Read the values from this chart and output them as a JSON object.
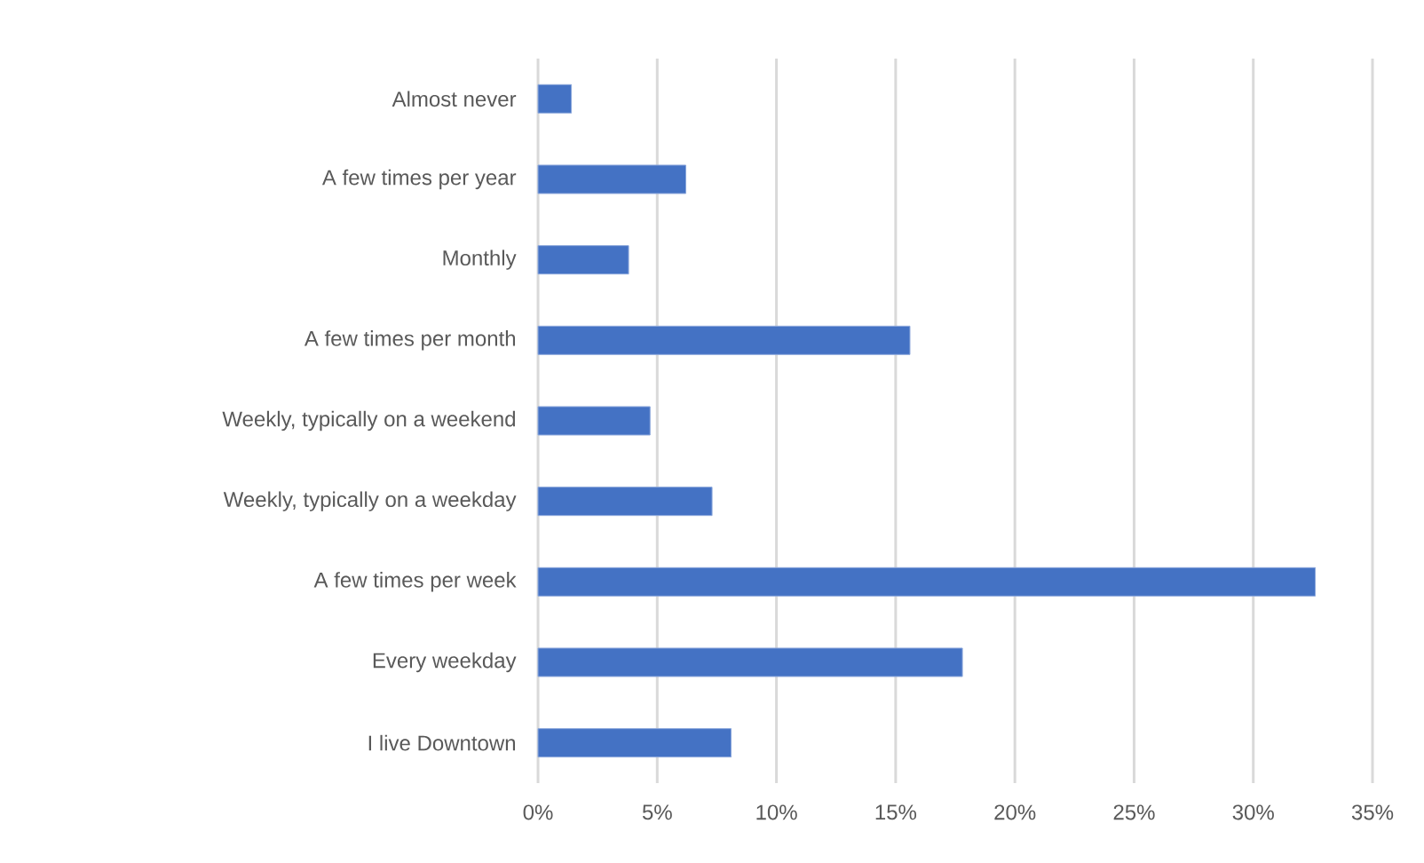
{
  "chart_data": {
    "type": "bar",
    "orientation": "horizontal",
    "categories": [
      "Almost never",
      "A few times per year",
      "Monthly",
      "A few times per month",
      "Weekly, typically on a weekend",
      "Weekly, typically on a weekday",
      "A few times per week",
      "Every weekday",
      "I live Downtown"
    ],
    "values": [
      1.4,
      6.2,
      3.8,
      15.6,
      4.7,
      7.3,
      32.6,
      17.8,
      8.1
    ],
    "color": "#4472c4",
    "xlim": [
      0,
      35
    ],
    "xticks": [
      {
        "value": 0,
        "label": "0%"
      },
      {
        "value": 5,
        "label": "5%"
      },
      {
        "value": 10,
        "label": "10%"
      },
      {
        "value": 15,
        "label": "15%"
      },
      {
        "value": 20,
        "label": "20%"
      },
      {
        "value": 25,
        "label": "25%"
      },
      {
        "value": 30,
        "label": "30%"
      },
      {
        "value": 35,
        "label": "35%"
      }
    ],
    "grid": "x"
  }
}
